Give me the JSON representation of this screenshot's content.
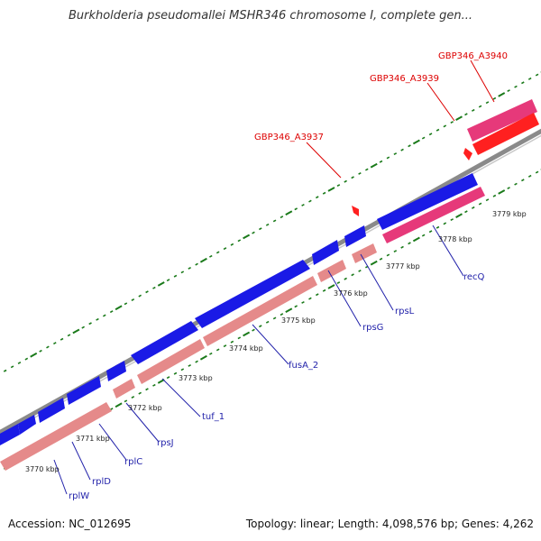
{
  "title": "Burkholderia pseudomallei MSHR346 chromosome I, complete gen...",
  "footer": {
    "accession": "Accession: NC_012695",
    "summary": "Topology: linear; Length: 4,098,576 bp; Genes: 4,262"
  },
  "colors": {
    "backbone": "#8a8a8a",
    "tick": "#1a7a1a",
    "forward_gene": "#1a1ae6",
    "reverse_gene": "#e58a8a",
    "pseudogene": "#e6397a",
    "rna_gene": "#ff2020",
    "label_blue": "#2222aa",
    "label_red": "#dd0000"
  },
  "scale_labels": [
    "3770 kbp",
    "3771 kbp",
    "3772 kbp",
    "3773 kbp",
    "3774 kbp",
    "3775 kbp",
    "3776 kbp",
    "3777 kbp",
    "3778 kbp",
    "3779 kbp"
  ],
  "gene_labels": {
    "rplW": "rplW",
    "rplD": "rplD",
    "rplC": "rplC",
    "rpsJ": "rpsJ",
    "tuf_1": "tuf_1",
    "fusA_2": "fusA_2",
    "rpsG": "rpsG",
    "rpsL": "rpsL",
    "recQ": "recQ",
    "GBP346_A3937": "GBP346_A3937",
    "GBP346_A3939": "GBP346_A3939",
    "GBP346_A3940": "GBP346_A3940"
  }
}
